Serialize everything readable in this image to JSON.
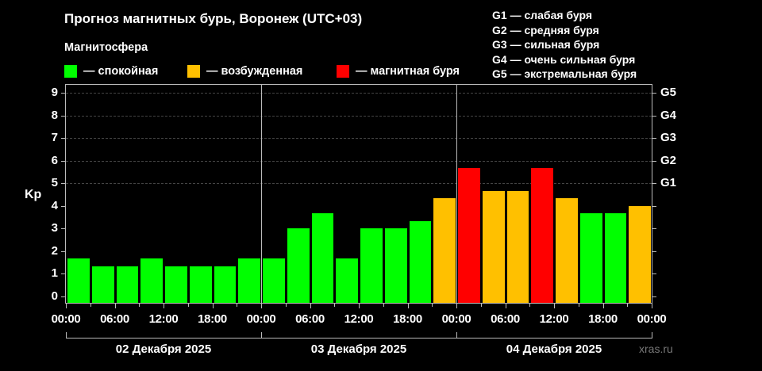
{
  "title": "Прогноз магнитных бурь, Воронеж (UTC+03)",
  "magnetosphere": {
    "title": "Магнитосфера",
    "legend": [
      {
        "label": "— спокойная",
        "color": "#00ff00"
      },
      {
        "label": "— возбужденная",
        "color": "#ffc000"
      },
      {
        "label": "— магнитная буря",
        "color": "#ff0000"
      }
    ]
  },
  "g_legend": [
    "G1 — слабая буря",
    "G2 — средняя буря",
    "G3 — сильная буря",
    "G4 — очень сильная буря",
    "G5 — экстремальная буря"
  ],
  "watermark": "xras.ru",
  "chart_data": {
    "type": "bar",
    "title": "Прогноз магнитных бурь, Воронеж (UTC+03)",
    "ylabel": "Kp",
    "ylim": [
      0,
      9
    ],
    "yticks": [
      0,
      1,
      2,
      3,
      4,
      5,
      6,
      7,
      8,
      9
    ],
    "right_axis_ticks": [
      {
        "value": 5,
        "label": "G1"
      },
      {
        "value": 6,
        "label": "G2"
      },
      {
        "value": 7,
        "label": "G3"
      },
      {
        "value": 8,
        "label": "G4"
      },
      {
        "value": 9,
        "label": "G5"
      }
    ],
    "grid": "dashed horizontal at 5–9",
    "xticks": [
      "00:00",
      "06:00",
      "12:00",
      "18:00",
      "00:00",
      "06:00",
      "12:00",
      "18:00",
      "00:00",
      "06:00",
      "12:00",
      "18:00",
      "00:00"
    ],
    "days": [
      "02 Декабря 2025",
      "03 Декабря 2025",
      "04 Декабря 2025"
    ],
    "categories": [
      "02.12 00-03",
      "02.12 03-06",
      "02.12 06-09",
      "02.12 09-12",
      "02.12 12-15",
      "02.12 15-18",
      "02.12 18-21",
      "02.12 21-24",
      "03.12 00-03",
      "03.12 03-06",
      "03.12 06-09",
      "03.12 09-12",
      "03.12 12-15",
      "03.12 15-18",
      "03.12 18-21",
      "03.12 21-24",
      "04.12 00-03",
      "04.12 03-06",
      "04.12 06-09",
      "04.12 09-12",
      "04.12 12-15",
      "04.12 15-18",
      "04.12 18-21",
      "04.12 21-24"
    ],
    "values": [
      1.67,
      1.33,
      1.33,
      1.67,
      1.33,
      1.33,
      1.33,
      1.67,
      1.67,
      3.0,
      3.67,
      1.67,
      3.0,
      3.0,
      3.33,
      4.33,
      5.67,
      4.67,
      4.67,
      5.67,
      4.33,
      3.67,
      3.67,
      4.0
    ],
    "colors": [
      "#00ff00",
      "#00ff00",
      "#00ff00",
      "#00ff00",
      "#00ff00",
      "#00ff00",
      "#00ff00",
      "#00ff00",
      "#00ff00",
      "#00ff00",
      "#00ff00",
      "#00ff00",
      "#00ff00",
      "#00ff00",
      "#00ff00",
      "#ffc000",
      "#ff0000",
      "#ffc000",
      "#ffc000",
      "#ff0000",
      "#ffc000",
      "#00ff00",
      "#00ff00",
      "#ffc000"
    ],
    "legend_position": "top"
  }
}
